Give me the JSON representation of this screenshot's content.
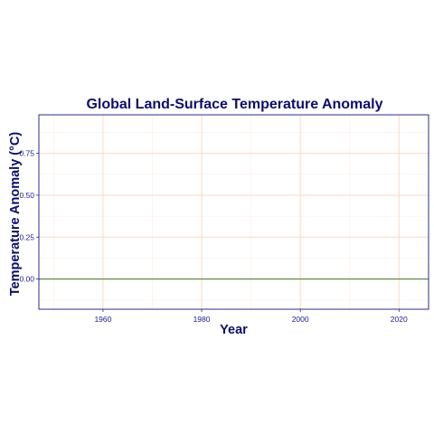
{
  "chart_data": {
    "type": "line",
    "title": "Global Land-Surface Temperature Anomaly",
    "xlabel": "Year",
    "ylabel": "Temperature Anomaly (°C)",
    "xlim": [
      1947,
      2026
    ],
    "ylim": [
      -0.18,
      0.98
    ],
    "x_ticks": [
      1960,
      1980,
      2000,
      2020
    ],
    "x_tick_labels": [
      "1960",
      "1980",
      "2000",
      "2020"
    ],
    "x_minor_ticks": [
      1950,
      1970,
      1990,
      2010
    ],
    "y_ticks": [
      0.0,
      0.25,
      0.5,
      0.75
    ],
    "y_tick_labels": [
      "0.00",
      "0.25",
      "0.50",
      "0.75"
    ],
    "y_minor_ticks": [
      -0.125,
      0.125,
      0.375,
      0.625,
      0.875
    ],
    "reference_line": {
      "y": 0
    },
    "series": [],
    "grid": true,
    "legend": "none",
    "colors": {
      "text": "#0d0d6b",
      "tick_text": "#1a1a8c",
      "panel_border": "#2b2b8c",
      "grid_major": "#fcd9bf",
      "grid_minor": "#feeee2",
      "reference_line": "#3b7a2a"
    }
  }
}
